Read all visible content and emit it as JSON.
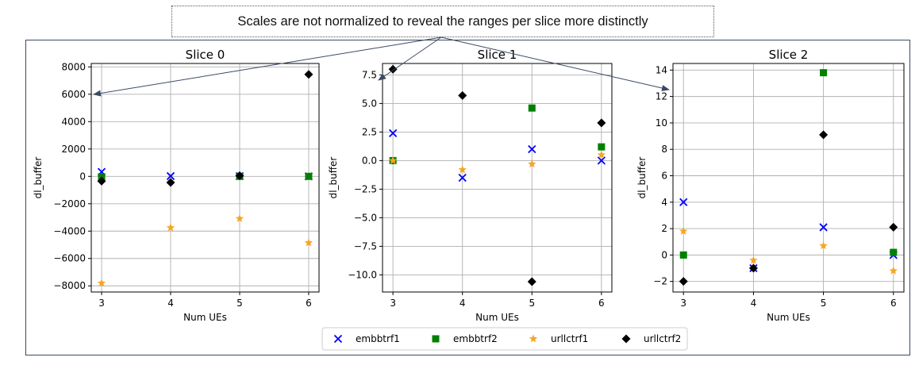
{
  "annotation": {
    "text": "Scales are not normalized to reveal the ranges per slice more distinctly"
  },
  "colors": {
    "embbtrf1": "#0000ff",
    "embbtrf2": "#008000",
    "urllctrf1": "#f5a623",
    "urllctrf2": "#000000",
    "grid": "#b0b0b0",
    "frame": "#3b4a63",
    "arrow": "#3b4a63"
  },
  "legend": {
    "placement": "bottom-center",
    "entries": [
      {
        "label": "embbtrf1",
        "marker": "x"
      },
      {
        "label": "embbtrf2",
        "marker": "square"
      },
      {
        "label": "urllctrf1",
        "marker": "star"
      },
      {
        "label": "urllctrf2",
        "marker": "diamond"
      }
    ]
  },
  "chart_data": [
    {
      "type": "scatter",
      "title": "Slice 0",
      "xlabel": "Num UEs",
      "ylabel": "dl_buffer",
      "x": [
        3,
        4,
        5,
        6
      ],
      "xticks": [
        3,
        4,
        5,
        6
      ],
      "xticklabels": [
        "3",
        "4",
        "5",
        "6"
      ],
      "yticks": [
        -8000,
        -6000,
        -4000,
        -2000,
        0,
        2000,
        4000,
        6000,
        8000
      ],
      "yticklabels": [
        "−8000",
        "−6000",
        "−4000",
        "−2000",
        "0",
        "2000",
        "4000",
        "6000",
        "8000"
      ],
      "ylim": [
        -8450,
        8250
      ],
      "grid": true,
      "series": [
        {
          "name": "embbtrf1",
          "values": [
            330,
            20,
            20,
            0
          ]
        },
        {
          "name": "embbtrf2",
          "values": [
            -30,
            null,
            0,
            0
          ]
        },
        {
          "name": "urllctrf1",
          "values": [
            -7800,
            -3750,
            -3080,
            -4850
          ]
        },
        {
          "name": "urllctrf2",
          "values": [
            -350,
            -450,
            50,
            7450
          ]
        }
      ]
    },
    {
      "type": "scatter",
      "title": "Slice 1",
      "xlabel": "Num UEs",
      "ylabel": "dl_buffer",
      "x": [
        3,
        4,
        5,
        6
      ],
      "xticks": [
        3,
        4,
        5,
        6
      ],
      "xticklabels": [
        "3",
        "4",
        "5",
        "6"
      ],
      "yticks": [
        -10.0,
        -7.5,
        -5.0,
        -2.5,
        0.0,
        2.5,
        5.0,
        7.5
      ],
      "yticklabels": [
        "−10.0",
        "−7.5",
        "−5.0",
        "−2.5",
        "0.0",
        "2.5",
        "5.0",
        "7.5"
      ],
      "ylim": [
        -11.5,
        8.5
      ],
      "grid": true,
      "series": [
        {
          "name": "embbtrf1",
          "values": [
            2.4,
            -1.5,
            1.0,
            0.0
          ]
        },
        {
          "name": "embbtrf2",
          "values": [
            0.0,
            null,
            4.6,
            1.2
          ]
        },
        {
          "name": "urllctrf1",
          "values": [
            0.0,
            -0.8,
            -0.3,
            0.5
          ]
        },
        {
          "name": "urllctrf2",
          "values": [
            8.0,
            5.7,
            -10.6,
            3.3
          ]
        }
      ]
    },
    {
      "type": "scatter",
      "title": "Slice 2",
      "xlabel": "Num UEs",
      "ylabel": "dl_buffer",
      "x": [
        3,
        4,
        5,
        6
      ],
      "xticks": [
        3,
        4,
        5,
        6
      ],
      "xticklabels": [
        "3",
        "4",
        "5",
        "6"
      ],
      "yticks": [
        -2,
        0,
        2,
        4,
        6,
        8,
        10,
        12,
        14
      ],
      "yticklabels": [
        "−2",
        "0",
        "2",
        "4",
        "6",
        "8",
        "10",
        "12",
        "14"
      ],
      "ylim": [
        -2.8,
        14.5
      ],
      "grid": true,
      "series": [
        {
          "name": "embbtrf1",
          "values": [
            4.0,
            -1.0,
            2.1,
            0.0
          ]
        },
        {
          "name": "embbtrf2",
          "values": [
            0.0,
            null,
            13.8,
            0.2
          ]
        },
        {
          "name": "urllctrf1",
          "values": [
            1.8,
            -0.4,
            0.7,
            -1.2
          ]
        },
        {
          "name": "urllctrf2",
          "values": [
            -2.0,
            -1.0,
            9.1,
            2.1
          ]
        }
      ]
    }
  ]
}
